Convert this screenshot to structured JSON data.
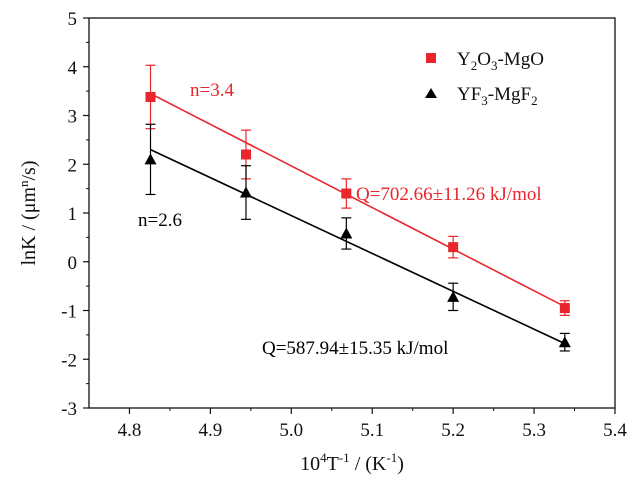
{
  "chart_data": {
    "type": "scatter",
    "title": "",
    "xlabel": {
      "base": "10",
      "exp1": "4",
      "mid": "T",
      "exp2": "-1",
      "sep": " / ",
      "unit_open": "(K",
      "unit_exp": "-1",
      "unit_close": ")"
    },
    "ylabel": {
      "pre": "lnK / (μm",
      "exp": "n",
      "post": "/s)"
    },
    "xlim": [
      4.75,
      5.4
    ],
    "ylim": [
      -3,
      5
    ],
    "xticks": [
      4.8,
      4.9,
      5.0,
      5.1,
      5.2,
      5.3,
      5.4
    ],
    "xtick_labels": [
      "4.8",
      "4.9",
      "5.0",
      "5.1",
      "5.2",
      "5.3",
      "5.4"
    ],
    "yticks": [
      -3,
      -2,
      -1,
      0,
      1,
      2,
      3,
      4,
      5
    ],
    "ytick_labels": [
      "-3",
      "-2",
      "-1",
      "0",
      "1",
      "2",
      "3",
      "4",
      "5"
    ],
    "legend_position": "top-right",
    "series": [
      {
        "name": "Y2O3-MgO",
        "legend_parts": [
          "Y",
          "2",
          "O",
          "3",
          "-MgO"
        ],
        "marker": "square",
        "color": "#e8262b",
        "x": [
          4.826,
          4.944,
          5.068,
          5.2,
          5.338
        ],
        "y": [
          3.38,
          2.2,
          1.4,
          0.3,
          -0.95
        ],
        "err": [
          0.65,
          0.5,
          0.3,
          0.22,
          0.15
        ],
        "fit": {
          "x": [
            4.826,
            5.338
          ],
          "y": [
            3.45,
            -0.92
          ]
        }
      },
      {
        "name": "YF3-MgF2",
        "legend_parts": [
          "YF",
          "3",
          "-MgF",
          "2"
        ],
        "marker": "triangle",
        "color": "#000000",
        "x": [
          4.826,
          4.944,
          5.068,
          5.2,
          5.338
        ],
        "y": [
          2.1,
          1.42,
          0.58,
          -0.72,
          -1.65
        ],
        "err": [
          0.72,
          0.55,
          0.32,
          0.28,
          0.18
        ],
        "fit": {
          "x": [
            4.826,
            5.338
          ],
          "y": [
            2.3,
            -1.68
          ]
        }
      }
    ],
    "annotations": [
      {
        "id": "n_red",
        "text": "n=3.4",
        "color": "#e8262b"
      },
      {
        "id": "q_red",
        "text": "Q=702.66±11.26 kJ/mol",
        "color": "#e8262b"
      },
      {
        "id": "n_black",
        "text": "n=2.6",
        "color": "#000000"
      },
      {
        "id": "q_black",
        "text": "Q=587.94±15.35 kJ/mol",
        "color": "#000000"
      }
    ]
  }
}
